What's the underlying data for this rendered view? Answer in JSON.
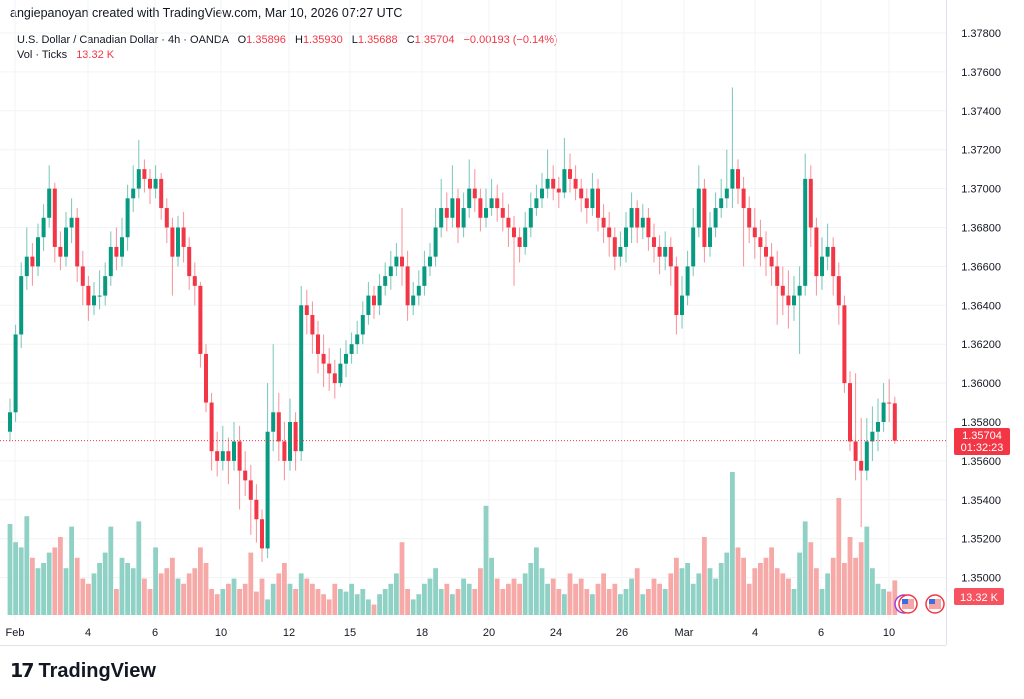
{
  "credit": "angiepanoyan created with TradingView.com, Mar 10, 2026 07:27 UTC",
  "legend": {
    "symbol": "U.S. Dollar / Canadian Dollar · 4h · OANDA",
    "o_label": "O",
    "o": "1.35896",
    "h_label": "H",
    "h": "1.35930",
    "l_label": "L",
    "l": "1.35688",
    "c_label": "C",
    "c": "1.35704",
    "change": "−0.00193 (−0.14%)",
    "vol_label": "Vol · Ticks",
    "vol": "13.32 K"
  },
  "price_label": {
    "price": "1.35704",
    "countdown": "01:32:23"
  },
  "vol_label": "13.32 K",
  "logo": "TradingView",
  "colors": {
    "up": "#089981",
    "down": "#f23645",
    "vol_up": "#8fd1c4",
    "vol_down": "#f6a9a7",
    "grid": "#f2f3f6"
  },
  "chart_data": {
    "type": "candlestick",
    "title": "U.S. Dollar / Canadian Dollar · 4h · OANDA",
    "first_open": 1.3575,
    "close": [
      1.3585,
      1.3625,
      1.3655,
      1.3665,
      1.366,
      1.3675,
      1.3685,
      1.37,
      1.367,
      1.3665,
      1.368,
      1.3685,
      1.366,
      1.365,
      1.364,
      1.3645,
      1.3645,
      1.3655,
      1.367,
      1.3665,
      1.3675,
      1.3695,
      1.37,
      1.371,
      1.3705,
      1.37,
      1.3705,
      1.369,
      1.368,
      1.3665,
      1.368,
      1.367,
      1.3655,
      1.365,
      1.3615,
      1.359,
      1.3565,
      1.356,
      1.3565,
      1.356,
      1.357,
      1.3555,
      1.355,
      1.354,
      1.353,
      1.3515,
      1.3575,
      1.3585,
      1.357,
      1.356,
      1.358,
      1.3565,
      1.364,
      1.3635,
      1.3625,
      1.3615,
      1.361,
      1.3605,
      1.36,
      1.361,
      1.3615,
      1.362,
      1.3625,
      1.3635,
      1.3645,
      1.364,
      1.365,
      1.3655,
      1.366,
      1.3665,
      1.366,
      1.364,
      1.3645,
      1.365,
      1.366,
      1.3665,
      1.368,
      1.369,
      1.3685,
      1.3695,
      1.368,
      1.369,
      1.37,
      1.3695,
      1.3685,
      1.369,
      1.3695,
      1.369,
      1.3685,
      1.368,
      1.3675,
      1.367,
      1.368,
      1.369,
      1.3695,
      1.37,
      1.3705,
      1.37,
      1.3698,
      1.371,
      1.3705,
      1.37,
      1.3695,
      1.369,
      1.37,
      1.3685,
      1.368,
      1.3675,
      1.3665,
      1.367,
      1.368,
      1.369,
      1.368,
      1.3685,
      1.3675,
      1.367,
      1.3665,
      1.367,
      1.366,
      1.3635,
      1.3645,
      1.366,
      1.368,
      1.37,
      1.367,
      1.368,
      1.369,
      1.3695,
      1.37,
      1.371,
      1.37,
      1.369,
      1.368,
      1.3675,
      1.367,
      1.3665,
      1.366,
      1.365,
      1.3645,
      1.364,
      1.3645,
      1.365,
      1.3705,
      1.368,
      1.3655,
      1.3665,
      1.367,
      1.3655,
      1.364,
      1.36,
      1.357,
      1.356,
      1.3555,
      1.357,
      1.3575,
      1.358,
      1.359,
      1.35896,
      1.35704
    ],
    "high": [
      1.3592,
      1.363,
      1.3662,
      1.368,
      1.3672,
      1.3682,
      1.3692,
      1.3712,
      1.3703,
      1.3678,
      1.3688,
      1.3695,
      1.369,
      1.3668,
      1.3655,
      1.3652,
      1.3658,
      1.3662,
      1.3678,
      1.368,
      1.3685,
      1.3702,
      1.3712,
      1.3725,
      1.3715,
      1.371,
      1.3712,
      1.3708,
      1.3695,
      1.3685,
      1.3686,
      1.3688,
      1.3675,
      1.3662,
      1.3652,
      1.362,
      1.3595,
      1.3575,
      1.3578,
      1.3572,
      1.358,
      1.3578,
      1.3565,
      1.3558,
      1.3548,
      1.3535,
      1.36,
      1.362,
      1.3595,
      1.358,
      1.3592,
      1.3585,
      1.365,
      1.3648,
      1.3642,
      1.3632,
      1.3625,
      1.3618,
      1.3612,
      1.3618,
      1.3622,
      1.3626,
      1.3632,
      1.3642,
      1.3652,
      1.365,
      1.3656,
      1.3662,
      1.3668,
      1.3672,
      1.369,
      1.3668,
      1.3652,
      1.3658,
      1.3668,
      1.3672,
      1.369,
      1.3705,
      1.3698,
      1.3712,
      1.37,
      1.3698,
      1.3715,
      1.371,
      1.37,
      1.37,
      1.3705,
      1.3702,
      1.3698,
      1.3692,
      1.3686,
      1.368,
      1.3688,
      1.3698,
      1.3702,
      1.3708,
      1.372,
      1.3712,
      1.3706,
      1.3726,
      1.3718,
      1.3712,
      1.3705,
      1.37,
      1.3708,
      1.3705,
      1.3692,
      1.3688,
      1.368,
      1.3678,
      1.3688,
      1.3698,
      1.3694,
      1.3692,
      1.369,
      1.3682,
      1.3676,
      1.3678,
      1.3675,
      1.3665,
      1.3655,
      1.3668,
      1.369,
      1.3712,
      1.3705,
      1.3688,
      1.3698,
      1.3705,
      1.372,
      1.3752,
      1.3715,
      1.3706,
      1.3696,
      1.369,
      1.3684,
      1.3678,
      1.3672,
      1.3668,
      1.366,
      1.3658,
      1.3655,
      1.366,
      1.3718,
      1.3712,
      1.3685,
      1.3675,
      1.3682,
      1.3675,
      1.3662,
      1.3645,
      1.3606,
      1.3605,
      1.3582,
      1.3582,
      1.3588,
      1.3592,
      1.36,
      1.3602,
      1.3593
    ],
    "low": [
      1.357,
      1.358,
      1.3618,
      1.3648,
      1.365,
      1.3655,
      1.3668,
      1.368,
      1.3662,
      1.3658,
      1.366,
      1.3672,
      1.3652,
      1.364,
      1.3632,
      1.3635,
      1.3638,
      1.364,
      1.365,
      1.3658,
      1.366,
      1.3668,
      1.3688,
      1.3695,
      1.3698,
      1.3692,
      1.3695,
      1.3684,
      1.3672,
      1.3645,
      1.366,
      1.3662,
      1.3648,
      1.364,
      1.3608,
      1.3585,
      1.3555,
      1.3552,
      1.3555,
      1.3548,
      1.3555,
      1.3535,
      1.3542,
      1.3522,
      1.3518,
      1.3508,
      1.351,
      1.3565,
      1.356,
      1.355,
      1.3555,
      1.3555,
      1.356,
      1.3625,
      1.3615,
      1.3605,
      1.3598,
      1.3596,
      1.3592,
      1.3598,
      1.3603,
      1.361,
      1.3615,
      1.362,
      1.363,
      1.3633,
      1.3635,
      1.3645,
      1.3648,
      1.3655,
      1.365,
      1.3632,
      1.3635,
      1.364,
      1.3645,
      1.3655,
      1.366,
      1.3675,
      1.3678,
      1.368,
      1.3672,
      1.3675,
      1.3685,
      1.3688,
      1.3678,
      1.368,
      1.3686,
      1.3683,
      1.3678,
      1.367,
      1.365,
      1.3662,
      1.3666,
      1.3675,
      1.3686,
      1.369,
      1.3695,
      1.3694,
      1.369,
      1.3695,
      1.3698,
      1.3694,
      1.3688,
      1.3682,
      1.3686,
      1.3678,
      1.3672,
      1.3665,
      1.3658,
      1.366,
      1.3662,
      1.3672,
      1.3672,
      1.3674,
      1.3668,
      1.3662,
      1.3656,
      1.3658,
      1.365,
      1.3625,
      1.3628,
      1.364,
      1.3655,
      1.3675,
      1.3662,
      1.3665,
      1.3675,
      1.3685,
      1.369,
      1.369,
      1.3692,
      1.366,
      1.3672,
      1.3664,
      1.366,
      1.3655,
      1.365,
      1.363,
      1.3635,
      1.3628,
      1.3632,
      1.3615,
      1.3645,
      1.367,
      1.3645,
      1.3648,
      1.3658,
      1.3645,
      1.363,
      1.3595,
      1.3565,
      1.355,
      1.3526,
      1.355,
      1.356,
      1.3565,
      1.3575,
      1.358,
      1.35688
    ],
    "volume_k": [
      35,
      28,
      26,
      38,
      22,
      18,
      20,
      24,
      26,
      30,
      18,
      34,
      22,
      14,
      12,
      16,
      20,
      24,
      34,
      10,
      22,
      20,
      18,
      36,
      14,
      10,
      26,
      16,
      18,
      22,
      14,
      12,
      16,
      18,
      26,
      20,
      10,
      8,
      10,
      12,
      14,
      10,
      12,
      24,
      9,
      14,
      6,
      12,
      16,
      20,
      12,
      10,
      16,
      14,
      12,
      10,
      8,
      6,
      12,
      10,
      9,
      12,
      8,
      10,
      6,
      4,
      8,
      10,
      12,
      16,
      28,
      10,
      6,
      8,
      12,
      14,
      18,
      10,
      12,
      8,
      10,
      14,
      12,
      10,
      18,
      42,
      22,
      14,
      10,
      12,
      14,
      12,
      16,
      20,
      26,
      18,
      12,
      14,
      10,
      8,
      16,
      12,
      14,
      10,
      8,
      12,
      16,
      10,
      12,
      8,
      10,
      14,
      18,
      8,
      10,
      14,
      12,
      10,
      16,
      22,
      18,
      20,
      12,
      16,
      30,
      18,
      14,
      20,
      24,
      55,
      26,
      22,
      12,
      18,
      20,
      22,
      26,
      18,
      16,
      14,
      10,
      24,
      36,
      28,
      18,
      10,
      16,
      22,
      45,
      20,
      30,
      22,
      28,
      34,
      18,
      12,
      10,
      9,
      13.32
    ],
    "x_tick_labels": [
      "Feb",
      "4",
      "6",
      "10",
      "12",
      "15",
      "18",
      "20",
      "24",
      "26",
      "Mar",
      "4",
      "6",
      "10"
    ],
    "y_tick_labels": [
      "1.37800",
      "1.37600",
      "1.37400",
      "1.37200",
      "1.37000",
      "1.36800",
      "1.36600",
      "1.36400",
      "1.36200",
      "1.36000",
      "1.35800",
      "1.35600",
      "1.35400",
      "1.35200",
      "1.35000"
    ],
    "ylim": [
      1.3494,
      1.3797
    ],
    "last_price": 1.35704
  }
}
